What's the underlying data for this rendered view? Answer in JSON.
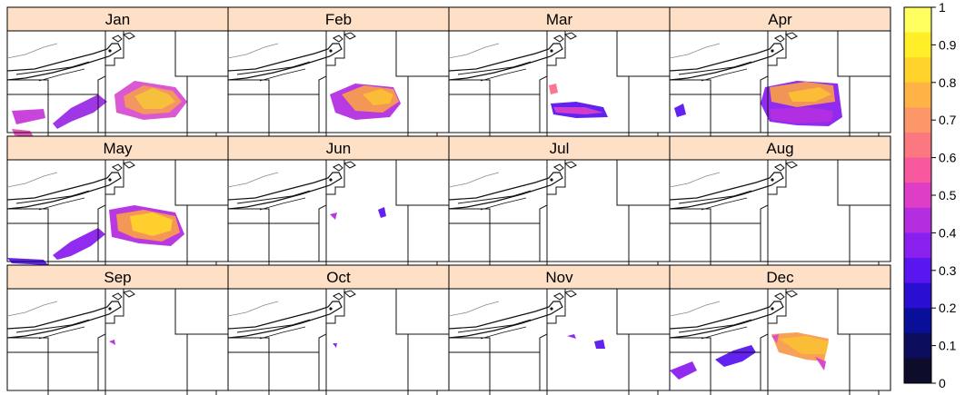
{
  "chart_data": {
    "type": "heatmap",
    "layout": "small-multiples-3x4",
    "panels": [
      {
        "label": "Jan"
      },
      {
        "label": "Feb"
      },
      {
        "label": "Mar"
      },
      {
        "label": "Apr"
      },
      {
        "label": "May"
      },
      {
        "label": "Jun"
      },
      {
        "label": "Jul"
      },
      {
        "label": "Aug"
      },
      {
        "label": "Sep"
      },
      {
        "label": "Oct"
      },
      {
        "label": "Nov"
      },
      {
        "label": "Dec"
      }
    ],
    "colorbar": {
      "range": [
        0,
        1
      ],
      "ticks": [
        "0",
        "0.1",
        "0.2",
        "0.3",
        "0.4",
        "0.5",
        "0.6",
        "0.7",
        "0.8",
        "0.9",
        "1"
      ],
      "colors": [
        "#0d0d2b",
        "#0d0d5e",
        "#0a0f99",
        "#2a0fd0",
        "#5a16ee",
        "#8a20ee",
        "#b42ee0",
        "#de3ec6",
        "#f8589e",
        "#fb7880",
        "#fd9668",
        "#ffb347",
        "#ffd22c",
        "#ffee28",
        "#ffff60"
      ]
    },
    "header_color": "#fde0c5",
    "background": "#ffffff"
  }
}
